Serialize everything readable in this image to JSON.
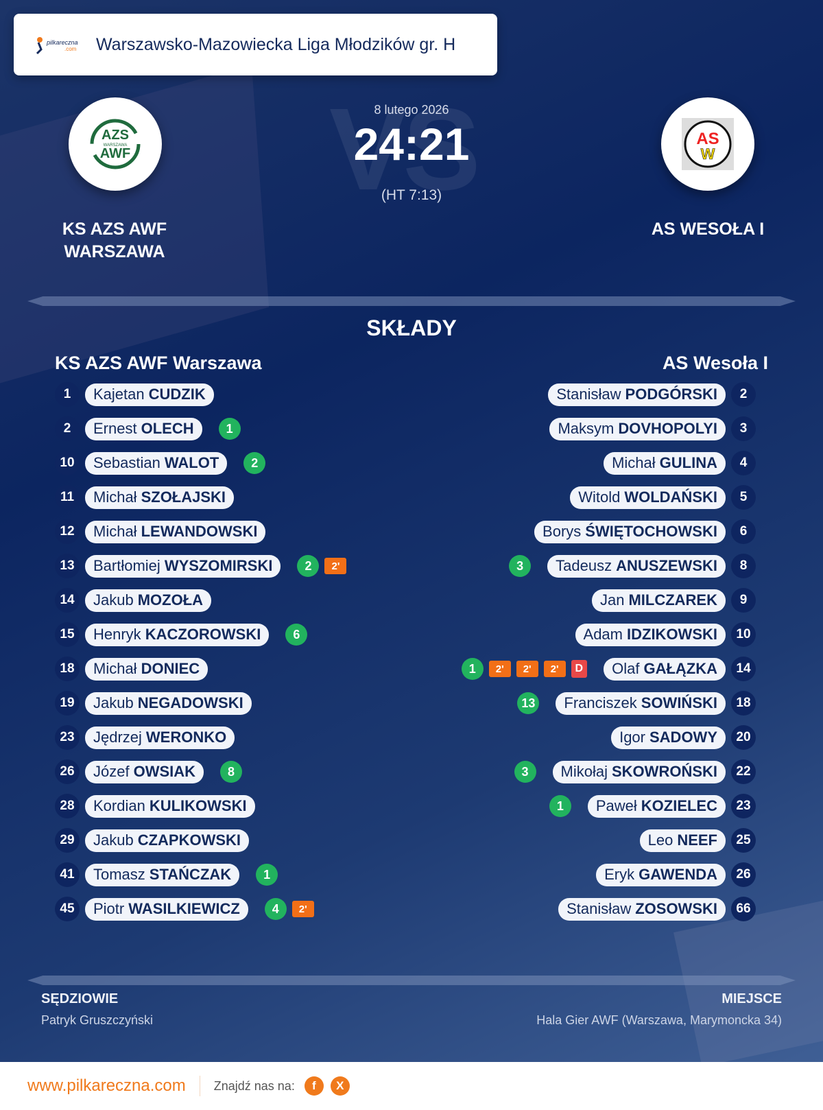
{
  "header": {
    "league": "Warszawsko-Mazowiecka Liga Młodzików gr. H",
    "logo_text": "pilkareczna.com"
  },
  "match": {
    "date": "8 lutego 2026",
    "score": "24:21",
    "halftime": "(HT 7:13)",
    "vs": "VS"
  },
  "home": {
    "name_line1": "KS AZS AWF",
    "name_line2": "WARSZAWA",
    "crest_text": "AZS WARSZAWA AWF",
    "lineup_title": "KS AZS AWF Warszawa"
  },
  "away": {
    "name": "AS WESOŁA I",
    "crest_text": "ASW",
    "lineup_title": "AS Wesoła I"
  },
  "section_title": "SKŁADY",
  "colors": {
    "goal": "#22b35e",
    "suspension": "#f26f17",
    "red_card": "#e94848",
    "accent": "#f07a1c"
  },
  "home_players": [
    {
      "num": "1",
      "first": "Kajetan",
      "last": "CUDZIK",
      "events": []
    },
    {
      "num": "2",
      "first": "Ernest",
      "last": "OLECH",
      "events": [
        {
          "t": "goal",
          "v": "1"
        }
      ]
    },
    {
      "num": "10",
      "first": "Sebastian",
      "last": "WALOT",
      "events": [
        {
          "t": "goal",
          "v": "2"
        }
      ]
    },
    {
      "num": "11",
      "first": "Michał",
      "last": "SZOŁAJSKI",
      "events": []
    },
    {
      "num": "12",
      "first": "Michał",
      "last": "LEWANDOWSKI",
      "events": []
    },
    {
      "num": "13",
      "first": "Bartłomiej",
      "last": "WYSZOMIRSKI",
      "events": [
        {
          "t": "goal",
          "v": "2"
        },
        {
          "t": "pen",
          "v": "2'"
        }
      ]
    },
    {
      "num": "14",
      "first": "Jakub",
      "last": "MOZOŁA",
      "events": []
    },
    {
      "num": "15",
      "first": "Henryk",
      "last": "KACZOROWSKI",
      "events": [
        {
          "t": "goal",
          "v": "6"
        }
      ]
    },
    {
      "num": "18",
      "first": "Michał",
      "last": "DONIEC",
      "events": []
    },
    {
      "num": "19",
      "first": "Jakub",
      "last": "NEGADOWSKI",
      "events": []
    },
    {
      "num": "23",
      "first": "Jędrzej",
      "last": "WERONKO",
      "events": []
    },
    {
      "num": "26",
      "first": "Józef",
      "last": "OWSIAK",
      "events": [
        {
          "t": "goal",
          "v": "8"
        }
      ]
    },
    {
      "num": "28",
      "first": "Kordian",
      "last": "KULIKOWSKI",
      "events": []
    },
    {
      "num": "29",
      "first": "Jakub",
      "last": "CZAPKOWSKI",
      "events": []
    },
    {
      "num": "41",
      "first": "Tomasz",
      "last": "STAŃCZAK",
      "events": [
        {
          "t": "goal",
          "v": "1"
        }
      ]
    },
    {
      "num": "45",
      "first": "Piotr",
      "last": "WASILKIEWICZ",
      "events": [
        {
          "t": "goal",
          "v": "4"
        },
        {
          "t": "pen",
          "v": "2'"
        }
      ]
    }
  ],
  "away_players": [
    {
      "num": "2",
      "first": "Stanisław",
      "last": "PODGÓRSKI",
      "events": []
    },
    {
      "num": "3",
      "first": "Maksym",
      "last": "DOVHOPOLYI",
      "events": []
    },
    {
      "num": "4",
      "first": "Michał",
      "last": "GULINA",
      "events": []
    },
    {
      "num": "5",
      "first": "Witold",
      "last": "WOLDAŃSKI",
      "events": []
    },
    {
      "num": "6",
      "first": "Borys",
      "last": "ŚWIĘTOCHOWSKI",
      "events": []
    },
    {
      "num": "8",
      "first": "Tadeusz",
      "last": "ANUSZEWSKI",
      "events": [
        {
          "t": "goal",
          "v": "3"
        }
      ]
    },
    {
      "num": "9",
      "first": "Jan",
      "last": "MILCZAREK",
      "events": []
    },
    {
      "num": "10",
      "first": "Adam",
      "last": "IDZIKOWSKI",
      "events": []
    },
    {
      "num": "14",
      "first": "Olaf",
      "last": "GAŁĄZKA",
      "events": [
        {
          "t": "goal",
          "v": "1"
        },
        {
          "t": "pen",
          "v": "2'"
        },
        {
          "t": "pen",
          "v": "2'"
        },
        {
          "t": "pen",
          "v": "2'"
        },
        {
          "t": "red",
          "v": "D"
        }
      ]
    },
    {
      "num": "18",
      "first": "Franciszek",
      "last": "SOWIŃSKI",
      "events": [
        {
          "t": "goal",
          "v": "13"
        }
      ]
    },
    {
      "num": "20",
      "first": "Igor",
      "last": "SADOWY",
      "events": []
    },
    {
      "num": "22",
      "first": "Mikołaj",
      "last": "SKOWROŃSKI",
      "events": [
        {
          "t": "goal",
          "v": "3"
        }
      ]
    },
    {
      "num": "23",
      "first": "Paweł",
      "last": "KOZIELEC",
      "events": [
        {
          "t": "goal",
          "v": "1"
        }
      ]
    },
    {
      "num": "25",
      "first": "Leo",
      "last": "NEEF",
      "events": []
    },
    {
      "num": "26",
      "first": "Eryk",
      "last": "GAWENDA",
      "events": []
    },
    {
      "num": "66",
      "first": "Stanisław",
      "last": "ZOSOWSKI",
      "events": []
    }
  ],
  "footer": {
    "referees_label": "SĘDZIOWIE",
    "referees": "Patryk Gruszczyński",
    "venue_label": "MIEJSCE",
    "venue": "Hala Gier AWF (Warszawa, Marymoncka 34)",
    "website": "www.pilkareczna.com",
    "find_us": "Znajdź nas na:",
    "facebook": "f",
    "x": "X"
  }
}
